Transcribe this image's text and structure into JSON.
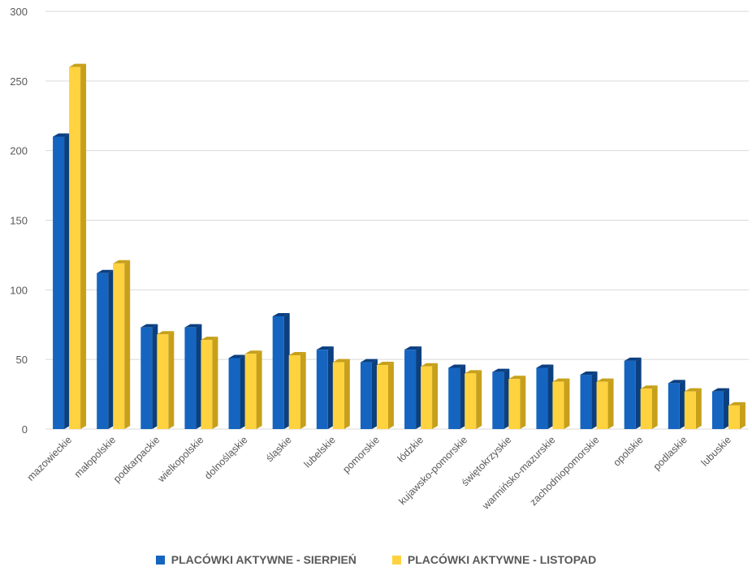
{
  "colors": {
    "series1_front": "#1565c0",
    "series1_side": "#0b3f80",
    "series2_front": "#ffd23f",
    "series2_side": "#c7a01a",
    "grid": "#d9d9d9",
    "text": "#595959"
  },
  "chart_data": {
    "type": "bar",
    "title": "",
    "xlabel": "",
    "ylabel": "",
    "ylim": [
      0,
      300
    ],
    "yticks": [
      "0",
      "50",
      "100",
      "150",
      "200",
      "250",
      "300"
    ],
    "grid": true,
    "legend_position": "bottom",
    "categories": [
      "mazowieckie",
      "małopolskie",
      "podkarpackie",
      "wielkopolskie",
      "dolnośląskie",
      "śląskie",
      "lubelskie",
      "pomorskie",
      "łódzkie",
      "kujawsko-pomorskie",
      "świętokrzyskie",
      "warmińsko-mazurskie",
      "zachodniopomorskie",
      "opolskie",
      "podlaskie",
      "lubuskie"
    ],
    "series": [
      {
        "name": "PLACÓWKI AKTYWNE - SIERPIEŃ",
        "values": [
          210,
          112,
          73,
          73,
          51,
          81,
          57,
          48,
          57,
          44,
          41,
          44,
          39,
          49,
          33,
          27
        ]
      },
      {
        "name": "PLACÓWKI AKTYWNE - LISTOPAD",
        "values": [
          260,
          119,
          68,
          64,
          54,
          53,
          48,
          46,
          45,
          40,
          36,
          34,
          34,
          29,
          27,
          17
        ]
      }
    ]
  }
}
